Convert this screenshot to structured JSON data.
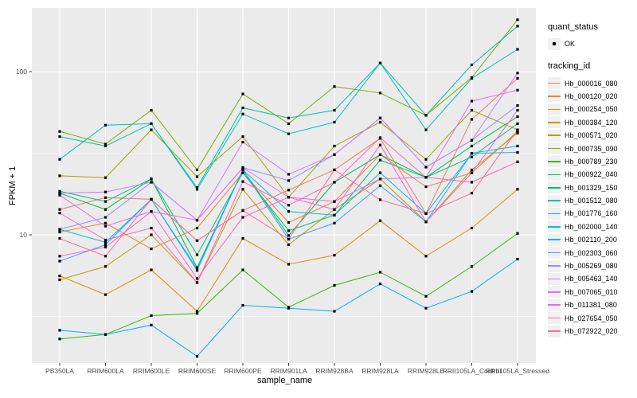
{
  "chart_data": {
    "type": "line",
    "title": "",
    "xlabel": "sample_name",
    "ylabel": "FPKM + 1",
    "y_scale": "log10",
    "y_ticks": [
      10,
      100
    ],
    "y_minor_ticks": [
      3.162,
      31.62
    ],
    "ylim": [
      1.6,
      250
    ],
    "grid": true,
    "legend_position": "right",
    "x_categories": [
      "PB350LA",
      "RRIM600LA",
      "RRIM600LE",
      "RRIM600SE",
      "RRIM600PE",
      "RRIM901LA",
      "RRIM928BA",
      "RRIM928LA",
      "RRIM928LE",
      "RRII105LA_Control",
      "RRII105LA_Stressed"
    ],
    "series": [
      {
        "name": "Hb_000016_080",
        "color": "#F8766D",
        "values": [
          14.3,
          16.9,
          16.5,
          9.2,
          14.1,
          18.8,
          25,
          39,
          13.5,
          51,
          91
        ]
      },
      {
        "name": "Hb_000120_020",
        "color": "#EA8331",
        "values": [
          10.4,
          11.8,
          8.2,
          11,
          24,
          11.9,
          16,
          31,
          19.7,
          24,
          43
        ]
      },
      {
        "name": "Hb_000254_050",
        "color": "#D89000",
        "values": [
          5.6,
          4.3,
          6.1,
          3.4,
          9.5,
          6.6,
          7.5,
          12.2,
          7.4,
          11,
          19
        ]
      },
      {
        "name": "Hb_000384_120",
        "color": "#C09B00",
        "values": [
          5.3,
          6.4,
          10,
          5.1,
          19,
          8.7,
          14.3,
          22,
          12,
          25,
          42
        ]
      },
      {
        "name": "Hb_000571_020",
        "color": "#A3A500",
        "values": [
          23,
          22.4,
          44,
          22.7,
          40,
          17,
          35,
          49,
          29,
          58,
          44
        ]
      },
      {
        "name": "Hb_000735_090",
        "color": "#7CAE00",
        "values": [
          43,
          36,
          58,
          25,
          73,
          48,
          81,
          74,
          54,
          92,
          208
        ]
      },
      {
        "name": "Hb_000789_230",
        "color": "#39B600",
        "values": [
          2.3,
          2.45,
          3.2,
          3.3,
          6.1,
          3.6,
          4.9,
          5.9,
          4.2,
          6.4,
          10.2
        ]
      },
      {
        "name": "Hb_000922_040",
        "color": "#00BB4E",
        "values": [
          18,
          14.3,
          22,
          6.3,
          25,
          9.9,
          21,
          31,
          22.5,
          35,
          53
        ]
      },
      {
        "name": "Hb_001329_150",
        "color": "#00BF7D",
        "values": [
          18.5,
          16,
          22,
          7.55,
          24,
          10.6,
          13.2,
          28.7,
          22.5,
          30,
          48
        ]
      },
      {
        "name": "Hb_001512_080",
        "color": "#00C1A3",
        "values": [
          40,
          35,
          48,
          19.5,
          60,
          52,
          58,
          113,
          54,
          110,
          190
        ]
      },
      {
        "name": "Hb_001776_160",
        "color": "#00BFC4",
        "values": [
          29,
          47,
          48,
          19,
          55,
          41.6,
          49,
          113,
          44,
          91,
          137
        ]
      },
      {
        "name": "Hb_002000_140",
        "color": "#00BAE0",
        "values": [
          10.8,
          9,
          16.5,
          6.2,
          25,
          13.9,
          13.2,
          24,
          13.5,
          31.6,
          35
        ]
      },
      {
        "name": "Hb_002110_200",
        "color": "#00B0F6",
        "values": [
          2.6,
          2.45,
          2.8,
          1.8,
          3.7,
          3.55,
          3.4,
          5.0,
          3.55,
          4.5,
          7.1
        ]
      },
      {
        "name": "Hb_002303_060",
        "color": "#35A2FF",
        "values": [
          6.9,
          8.7,
          16.5,
          6.05,
          25,
          9.4,
          11.8,
          20,
          12,
          31.6,
          32
        ]
      },
      {
        "name": "Hb_005269_080",
        "color": "#9590FF",
        "values": [
          10.8,
          12.8,
          21,
          12.3,
          25.8,
          21.5,
          31,
          52,
          26,
          38,
          62
        ]
      },
      {
        "name": "Hb_005463_140",
        "color": "#C77CFF",
        "values": [
          18,
          18.3,
          21,
          12.3,
          37,
          23.5,
          31,
          52,
          26,
          38,
          98
        ]
      },
      {
        "name": "Hb_007065_010",
        "color": "#E76BF3",
        "values": [
          17.5,
          11.3,
          13.9,
          12.3,
          25.8,
          17,
          16,
          22,
          22.5,
          66,
          77
        ]
      },
      {
        "name": "Hb_011381_080",
        "color": "#FA62DB",
        "values": [
          7.4,
          8.4,
          13.9,
          5.4,
          12.8,
          17,
          14.3,
          35.5,
          12,
          24,
          58
        ]
      },
      {
        "name": "Hb_027654_050",
        "color": "#FF62BC",
        "values": [
          13.6,
          9.3,
          11,
          5.1,
          21.2,
          15.2,
          21,
          39.4,
          22.5,
          21,
          28
        ]
      },
      {
        "name": "Hb_072922_020",
        "color": "#FF6A98",
        "values": [
          9.5,
          7.4,
          16.5,
          9.2,
          14.1,
          9.4,
          25,
          16.4,
          13.5,
          18,
          44
        ]
      }
    ]
  },
  "legend": {
    "quant_status": {
      "title": "quant_status",
      "items": [
        {
          "label": "OK",
          "marker": "black-point"
        }
      ]
    },
    "tracking_id": {
      "title": "tracking_id"
    }
  },
  "style": {
    "panel_bg": "#EBEBEB",
    "grid_major": "#FFFFFF",
    "grid_minor": "#FFFFFF",
    "tick_label_color": "#4D4D4D",
    "point_color": "#000000",
    "legend_key_bg": "#F0F0F0"
  }
}
